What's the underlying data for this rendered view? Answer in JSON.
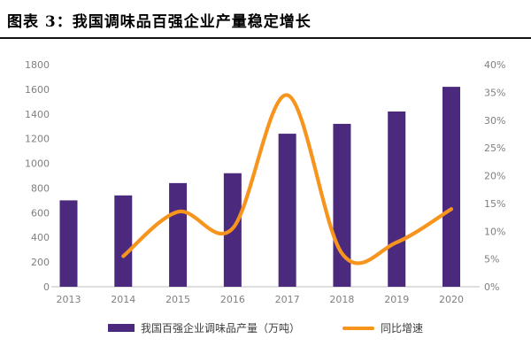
{
  "title": "图表 3：我国调味品百强企业产量稳定增长",
  "chart_data": {
    "type": "bar",
    "subtype": "bar+line combo, dual axis",
    "title": "我国调味品百强企业产量稳定增长",
    "categories": [
      "2013",
      "2014",
      "2015",
      "2016",
      "2017",
      "2018",
      "2019",
      "2020"
    ],
    "series": [
      {
        "name": "我国百强企业调味品产量（万吨）",
        "type": "bar",
        "axis": "left",
        "color": "#4B2A7E",
        "values": [
          700,
          740,
          840,
          920,
          1240,
          1320,
          1420,
          1620
        ]
      },
      {
        "name": "同比增速",
        "type": "line",
        "axis": "right",
        "color": "#F7941D",
        "smooth": true,
        "values": [
          null,
          5.5,
          13.5,
          10.5,
          34.5,
          6,
          8,
          14
        ]
      }
    ],
    "left_axis": {
      "min": 0,
      "max": 1800,
      "step": 200,
      "tick_labels": [
        "0",
        "200",
        "400",
        "600",
        "800",
        "1000",
        "1200",
        "1400",
        "1600",
        "1800"
      ]
    },
    "right_axis": {
      "min": 0,
      "max": 40,
      "step": 5,
      "tick_labels": [
        "0%",
        "5%",
        "10%",
        "15%",
        "20%",
        "25%",
        "30%",
        "35%",
        "40%"
      ]
    },
    "grid": false,
    "legend_position": "bottom"
  },
  "colors": {
    "background": "#FFFFFF",
    "title_text": "#000000",
    "title_rule": "#111111",
    "tick_label": "#7F7F7F",
    "axis_line": "#C9C9C9",
    "bar": "#4B2A7E",
    "line": "#F7941D"
  }
}
